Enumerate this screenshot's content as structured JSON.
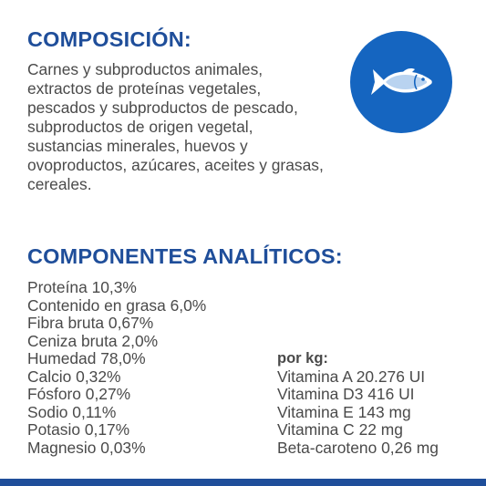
{
  "composition": {
    "title": "COMPOSICIÓN:",
    "text": "Carnes y subproductos animales, extractos de proteínas vegetales, pescados y subproductos de pescado, subproductos de origen vegetal, sustancias minerales, huevos y ovoproductos, azúcares, aceites y grasas, cereales.",
    "icon": "fish-icon",
    "badge_color": "#1565c0"
  },
  "analytic": {
    "title": "COMPONENTES ANALÍTICOS:",
    "items": [
      "Proteína 10,3%",
      "Contenido en grasa 6,0%",
      "Fibra bruta 0,67%",
      "Ceniza bruta 2,0%",
      "Humedad 78,0%",
      "Calcio 0,32%",
      "Fósforo 0,27%",
      "Sodio 0,11%",
      "Potasio 0,17%",
      "Magnesio 0,03%"
    ]
  },
  "vitamins": {
    "label": "por kg:",
    "items": [
      "Vitamina A 20.276 UI",
      "Vitamina D3 416 UI",
      "Vitamina E 143 mg",
      "Vitamina C 22 mg",
      "Beta-caroteno 0,26 mg"
    ]
  },
  "colors": {
    "heading": "#1f4e9a",
    "text": "#4a4a4a",
    "bar": "#1f4e9a"
  }
}
